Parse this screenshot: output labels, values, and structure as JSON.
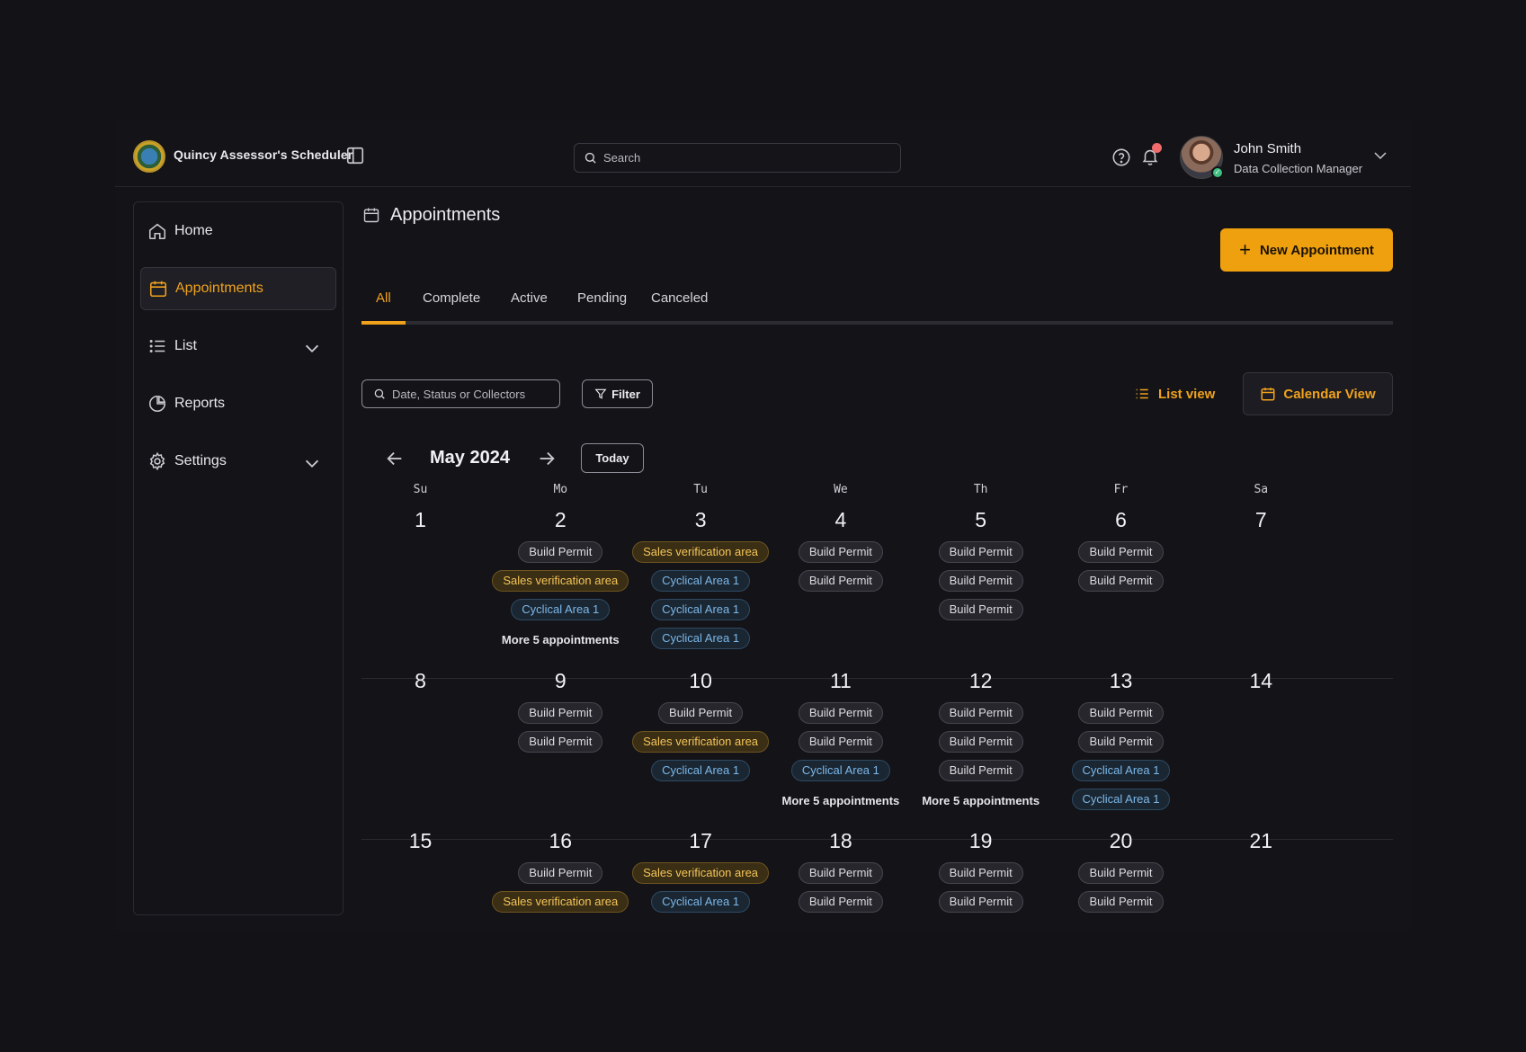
{
  "header": {
    "app_title": "Quincy Assessor's Scheduler",
    "search_placeholder": "Search",
    "user_name": "John Smith",
    "user_role": "Data Collection Manager"
  },
  "sidebar": {
    "items": [
      {
        "label": "Home",
        "icon": "home-icon",
        "active": false,
        "expandable": false
      },
      {
        "label": "Appointments",
        "icon": "calendar-icon",
        "active": true,
        "expandable": false
      },
      {
        "label": "List",
        "icon": "list-icon",
        "active": false,
        "expandable": true
      },
      {
        "label": "Reports",
        "icon": "pie-chart-icon",
        "active": false,
        "expandable": false
      },
      {
        "label": "Settings",
        "icon": "gear-icon",
        "active": false,
        "expandable": true
      }
    ]
  },
  "main": {
    "title": "Appointments",
    "new_button": "New Appointment",
    "tabs": [
      "All",
      "Complete",
      "Active",
      "Pending",
      "Canceled"
    ],
    "active_tab": "All",
    "filter_placeholder": "Date, Status or Collectors",
    "filter_label": "Filter",
    "list_view_label": "List view",
    "calendar_view_label": "Calendar View"
  },
  "calendar": {
    "month_label": "May 2024",
    "today_label": "Today",
    "weekdays": [
      "Su",
      "Mo",
      "Tu",
      "We",
      "Th",
      "Fr",
      "Sa"
    ],
    "weeks": [
      [
        {
          "day": "1",
          "items": []
        },
        {
          "day": "2",
          "items": [
            {
              "label": "Build Permit",
              "type": "build"
            },
            {
              "label": "Sales verification area",
              "type": "sales"
            },
            {
              "label": "Cyclical Area 1",
              "type": "cyc"
            }
          ],
          "more": "More 5 appointments"
        },
        {
          "day": "3",
          "items": [
            {
              "label": "Sales verification area",
              "type": "sales"
            },
            {
              "label": "Cyclical Area 1",
              "type": "cyc"
            },
            {
              "label": "Cyclical Area 1",
              "type": "cyc"
            },
            {
              "label": "Cyclical Area 1",
              "type": "cyc"
            }
          ]
        },
        {
          "day": "4",
          "items": [
            {
              "label": "Build Permit",
              "type": "build"
            },
            {
              "label": "Build Permit",
              "type": "build"
            }
          ]
        },
        {
          "day": "5",
          "items": [
            {
              "label": "Build Permit",
              "type": "build"
            },
            {
              "label": "Build Permit",
              "type": "build"
            },
            {
              "label": "Build Permit",
              "type": "build"
            }
          ]
        },
        {
          "day": "6",
          "items": [
            {
              "label": "Build Permit",
              "type": "build"
            },
            {
              "label": "Build Permit",
              "type": "build"
            }
          ]
        },
        {
          "day": "7",
          "items": []
        }
      ],
      [
        {
          "day": "8",
          "items": []
        },
        {
          "day": "9",
          "items": [
            {
              "label": "Build Permit",
              "type": "build"
            },
            {
              "label": "Build Permit",
              "type": "build"
            }
          ]
        },
        {
          "day": "10",
          "items": [
            {
              "label": "Build Permit",
              "type": "build"
            },
            {
              "label": "Sales verification area",
              "type": "sales"
            },
            {
              "label": "Cyclical Area 1",
              "type": "cyc"
            }
          ]
        },
        {
          "day": "11",
          "items": [
            {
              "label": "Build Permit",
              "type": "build"
            },
            {
              "label": "Build Permit",
              "type": "build"
            },
            {
              "label": "Cyclical Area 1",
              "type": "cyc"
            }
          ],
          "more": "More 5 appointments"
        },
        {
          "day": "12",
          "items": [
            {
              "label": "Build Permit",
              "type": "build"
            },
            {
              "label": "Build Permit",
              "type": "build"
            },
            {
              "label": "Build Permit",
              "type": "build"
            }
          ],
          "more": "More 5 appointments"
        },
        {
          "day": "13",
          "items": [
            {
              "label": "Build Permit",
              "type": "build"
            },
            {
              "label": "Build Permit",
              "type": "build"
            },
            {
              "label": "Cyclical Area 1",
              "type": "cyc"
            },
            {
              "label": "Cyclical Area 1",
              "type": "cyc"
            }
          ]
        },
        {
          "day": "14",
          "items": []
        }
      ],
      [
        {
          "day": "15",
          "items": []
        },
        {
          "day": "16",
          "items": [
            {
              "label": "Build Permit",
              "type": "build"
            },
            {
              "label": "Sales verification area",
              "type": "sales"
            }
          ]
        },
        {
          "day": "17",
          "items": [
            {
              "label": "Sales verification area",
              "type": "sales"
            },
            {
              "label": "Cyclical Area 1",
              "type": "cyc"
            }
          ]
        },
        {
          "day": "18",
          "items": [
            {
              "label": "Build Permit",
              "type": "build"
            },
            {
              "label": "Build Permit",
              "type": "build"
            }
          ]
        },
        {
          "day": "19",
          "items": [
            {
              "label": "Build Permit",
              "type": "build"
            },
            {
              "label": "Build Permit",
              "type": "build"
            }
          ]
        },
        {
          "day": "20",
          "items": [
            {
              "label": "Build Permit",
              "type": "build"
            },
            {
              "label": "Build Permit",
              "type": "build"
            }
          ]
        },
        {
          "day": "21",
          "items": []
        }
      ]
    ]
  },
  "colors": {
    "accent": "#f0a21c",
    "background": "#131318",
    "chip_sales_text": "#f5c55a",
    "chip_cyclical_text": "#7db7e8"
  }
}
